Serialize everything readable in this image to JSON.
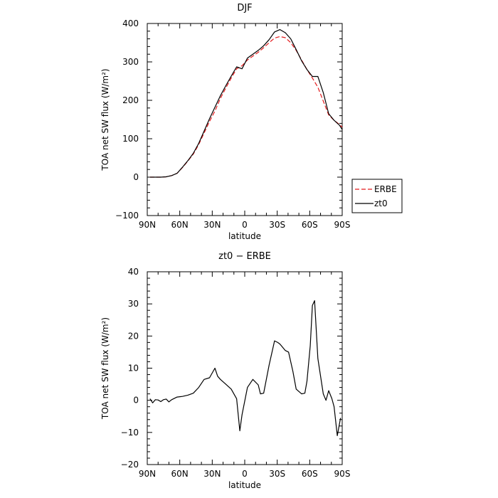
{
  "chart_data": [
    {
      "type": "line",
      "title": "DJF",
      "xlabel": "latitude",
      "ylabel": "TOA net SW flux (W/m²)",
      "xlim": [
        -90,
        90
      ],
      "ylim": [
        -100,
        400
      ],
      "x_ticks": [
        -90,
        -60,
        -30,
        0,
        30,
        60,
        90
      ],
      "x_tick_labels": [
        "90N",
        "60N",
        "30N",
        "0",
        "30S",
        "60S",
        "90S"
      ],
      "y_ticks": [
        -100,
        0,
        100,
        200,
        300,
        400
      ],
      "y_tick_labels": [
        "−100",
        "0",
        "100",
        "200",
        "300",
        "400"
      ],
      "legend_position": "right",
      "series": [
        {
          "name": "ERBE",
          "color": "#e41a1c",
          "style": "dashed",
          "points": [
            [
              -87.5,
              0
            ],
            [
              -82.5,
              0
            ],
            [
              -77.5,
              0
            ],
            [
              -72.5,
              1
            ],
            [
              -67.5,
              4
            ],
            [
              -62.5,
              10
            ],
            [
              -57.5,
              25
            ],
            [
              -52.5,
              42
            ],
            [
              -47.5,
              60
            ],
            [
              -42.5,
              85
            ],
            [
              -37.5,
              115
            ],
            [
              -32.5,
              145
            ],
            [
              -27.5,
              172
            ],
            [
              -22.5,
              205
            ],
            [
              -17.5,
              232
            ],
            [
              -12.5,
              258
            ],
            [
              -7.5,
              282
            ],
            [
              -2.5,
              290
            ],
            [
              2.5,
              305
            ],
            [
              7.5,
              315
            ],
            [
              12.5,
              325
            ],
            [
              17.5,
              337
            ],
            [
              22.5,
              350
            ],
            [
              27.5,
              362
            ],
            [
              32.5,
              366
            ],
            [
              37.5,
              363
            ],
            [
              42.5,
              350
            ],
            [
              47.5,
              330
            ],
            [
              52.5,
              305
            ],
            [
              57.5,
              280
            ],
            [
              62.5,
              258
            ],
            [
              67.5,
              234
            ],
            [
              72.5,
              198
            ],
            [
              77.5,
              162
            ],
            [
              82.5,
              148
            ],
            [
              87.5,
              137
            ],
            [
              90,
              130
            ]
          ]
        },
        {
          "name": "zt0",
          "color": "#000000",
          "style": "solid",
          "points": [
            [
              -87.5,
              0
            ],
            [
              -82.5,
              0
            ],
            [
              -77.5,
              0
            ],
            [
              -72.5,
              1
            ],
            [
              -67.5,
              4
            ],
            [
              -62.5,
              10
            ],
            [
              -57.5,
              26
            ],
            [
              -52.5,
              43
            ],
            [
              -47.5,
              62
            ],
            [
              -42.5,
              88
            ],
            [
              -37.5,
              120
            ],
            [
              -32.5,
              152
            ],
            [
              -27.5,
              182
            ],
            [
              -22.5,
              212
            ],
            [
              -17.5,
              238
            ],
            [
              -12.5,
              263
            ],
            [
              -7.5,
              287
            ],
            [
              -2.5,
              282
            ],
            [
              2.5,
              310
            ],
            [
              7.5,
              320
            ],
            [
              12.5,
              330
            ],
            [
              17.5,
              342
            ],
            [
              22.5,
              358
            ],
            [
              27.5,
              378
            ],
            [
              32.5,
              384
            ],
            [
              37.5,
              376
            ],
            [
              42.5,
              360
            ],
            [
              47.5,
              332
            ],
            [
              52.5,
              303
            ],
            [
              57.5,
              280
            ],
            [
              62.5,
              262
            ],
            [
              67.5,
              262
            ],
            [
              72.5,
              220
            ],
            [
              77.5,
              165
            ],
            [
              82.5,
              148
            ],
            [
              87.5,
              135
            ],
            [
              90,
              124
            ]
          ]
        }
      ]
    },
    {
      "type": "line",
      "title": "zt0 − ERBE",
      "xlabel": "latitude",
      "ylabel": "TOA net SW flux (W/m²)",
      "xlim": [
        -90,
        90
      ],
      "ylim": [
        -20,
        40
      ],
      "x_ticks": [
        -90,
        -60,
        -30,
        0,
        30,
        60,
        90
      ],
      "x_tick_labels": [
        "90N",
        "60N",
        "30N",
        "0",
        "30S",
        "60S",
        "90S"
      ],
      "y_ticks": [
        -20,
        -10,
        0,
        10,
        20,
        30,
        40
      ],
      "y_tick_labels": [
        "−20",
        "−10",
        "0",
        "10",
        "20",
        "30",
        "40"
      ],
      "series": [
        {
          "name": "",
          "color": "#000000",
          "style": "solid",
          "points": [
            [
              -87.5,
              0.5
            ],
            [
              -85,
              -0.8
            ],
            [
              -82.5,
              0.2
            ],
            [
              -80,
              0.1
            ],
            [
              -77.5,
              -0.4
            ],
            [
              -75,
              0.2
            ],
            [
              -72.5,
              0.4
            ],
            [
              -70,
              -0.5
            ],
            [
              -67.5,
              0.2
            ],
            [
              -62.5,
              1.0
            ],
            [
              -57.5,
              1.2
            ],
            [
              -52.5,
              1.6
            ],
            [
              -47.5,
              2.2
            ],
            [
              -42.5,
              4.0
            ],
            [
              -37.5,
              6.5
            ],
            [
              -32.5,
              7.0
            ],
            [
              -27.5,
              10.0
            ],
            [
              -25,
              7.5
            ],
            [
              -22.5,
              6.5
            ],
            [
              -17.5,
              5.0
            ],
            [
              -12.5,
              3.5
            ],
            [
              -7.5,
              0.5
            ],
            [
              -4.5,
              -9.5
            ],
            [
              -2.5,
              -4.5
            ],
            [
              2.5,
              4.0
            ],
            [
              7.5,
              6.5
            ],
            [
              12.5,
              4.8
            ],
            [
              14.5,
              2.0
            ],
            [
              17.5,
              2.2
            ],
            [
              22.5,
              11.0
            ],
            [
              27.5,
              18.5
            ],
            [
              30.5,
              18.0
            ],
            [
              32.5,
              17.5
            ],
            [
              37.5,
              15.5
            ],
            [
              40.5,
              15.0
            ],
            [
              44.5,
              9.0
            ],
            [
              47.5,
              3.5
            ],
            [
              52.5,
              2.0
            ],
            [
              55.5,
              2.2
            ],
            [
              57.5,
              6.0
            ],
            [
              60.5,
              17.0
            ],
            [
              62.5,
              29.5
            ],
            [
              64.5,
              31.0
            ],
            [
              67.5,
              13.0
            ],
            [
              72.5,
              2.0
            ],
            [
              75,
              0.0
            ],
            [
              77.5,
              3.0
            ],
            [
              80.5,
              0.5
            ],
            [
              82.5,
              -2.0
            ],
            [
              85.5,
              -11.0
            ],
            [
              88.5,
              -5.5
            ]
          ]
        }
      ]
    }
  ]
}
